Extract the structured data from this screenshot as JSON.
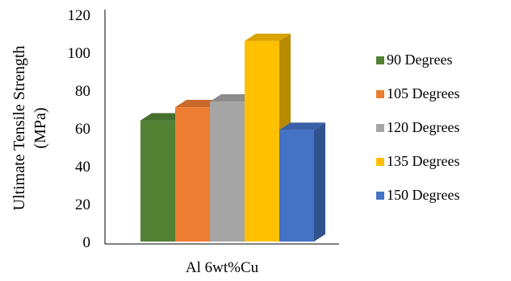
{
  "chart_data": {
    "type": "bar",
    "categories": [
      "Al 6wt%Cu"
    ],
    "series": [
      {
        "name": "90 Degrees",
        "values": [
          64
        ],
        "color": "#548235"
      },
      {
        "name": "105 Degrees",
        "values": [
          71
        ],
        "color": "#ED7D31"
      },
      {
        "name": "120 Degrees",
        "values": [
          74
        ],
        "color": "#A5A5A5"
      },
      {
        "name": "135 Degrees",
        "values": [
          106
        ],
        "color": "#FFC000"
      },
      {
        "name": "150 Degrees",
        "values": [
          59
        ],
        "color": "#4472C4"
      }
    ],
    "title": "",
    "xlabel": "",
    "ylabel": "Ultimate Tensile Strength (MPa)",
    "ylabel_lines": [
      "Ultimate Tensile Strength",
      "(MPa)"
    ],
    "ylim": [
      0,
      120
    ],
    "yticks": [
      0,
      20,
      40,
      60,
      80,
      100,
      120
    ],
    "style": "3d-clustered-column",
    "grid": false,
    "legend_position": "right"
  }
}
